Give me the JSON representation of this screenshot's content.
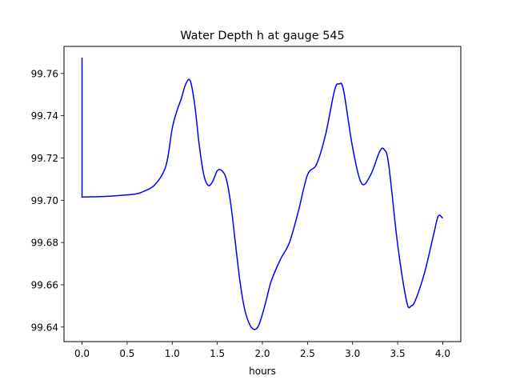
{
  "chart_data": {
    "type": "line",
    "title": "Water Depth h at gauge 545",
    "xlabel": "hours",
    "ylabel": "",
    "xlim": [
      -0.2,
      4.2
    ],
    "ylim": [
      99.6331,
      99.7728
    ],
    "xticks": [
      0.0,
      0.5,
      1.0,
      1.5,
      2.0,
      2.5,
      3.0,
      3.5,
      4.0
    ],
    "xtick_labels": [
      "0.0",
      "0.5",
      "1.0",
      "1.5",
      "2.0",
      "2.5",
      "3.0",
      "3.5",
      "4.0"
    ],
    "yticks": [
      99.64,
      99.66,
      99.68,
      99.7,
      99.72,
      99.74,
      99.76
    ],
    "ytick_labels": [
      "99.64",
      "99.66",
      "99.68",
      "99.70",
      "99.72",
      "99.74",
      "99.76"
    ],
    "grid": false,
    "legend": "none",
    "series": [
      {
        "color": "#0000ff",
        "x": [
          0.0,
          0.0,
          0.0,
          0.2,
          0.4,
          0.6,
          0.7,
          0.8,
          0.9,
          0.95,
          1.0,
          1.05,
          1.1,
          1.15,
          1.2,
          1.25,
          1.3,
          1.35,
          1.4,
          1.45,
          1.5,
          1.55,
          1.6,
          1.65,
          1.7,
          1.75,
          1.8,
          1.85,
          1.9,
          1.95,
          2.0,
          2.05,
          2.1,
          2.2,
          2.3,
          2.4,
          2.5,
          2.6,
          2.7,
          2.8,
          2.85,
          2.9,
          3.0,
          3.1,
          3.2,
          3.3,
          3.35,
          3.4,
          3.5,
          3.6,
          3.65,
          3.7,
          3.8,
          3.9,
          3.95,
          4.0
        ],
        "y": [
          99.7675,
          99.7015,
          99.7015,
          99.7017,
          99.7022,
          99.703,
          99.7045,
          99.707,
          99.713,
          99.72,
          99.734,
          99.742,
          99.748,
          99.755,
          99.7565,
          99.745,
          99.726,
          99.712,
          99.707,
          99.709,
          99.714,
          99.714,
          99.71,
          99.698,
          99.68,
          99.662,
          99.649,
          99.642,
          99.639,
          99.64,
          99.646,
          99.654,
          99.662,
          99.672,
          99.68,
          99.695,
          99.712,
          99.717,
          99.731,
          99.752,
          99.755,
          99.752,
          99.725,
          99.708,
          99.712,
          99.723,
          99.724,
          99.717,
          99.679,
          99.652,
          99.65,
          99.653,
          99.666,
          99.684,
          99.6925,
          99.6915
        ]
      }
    ]
  }
}
